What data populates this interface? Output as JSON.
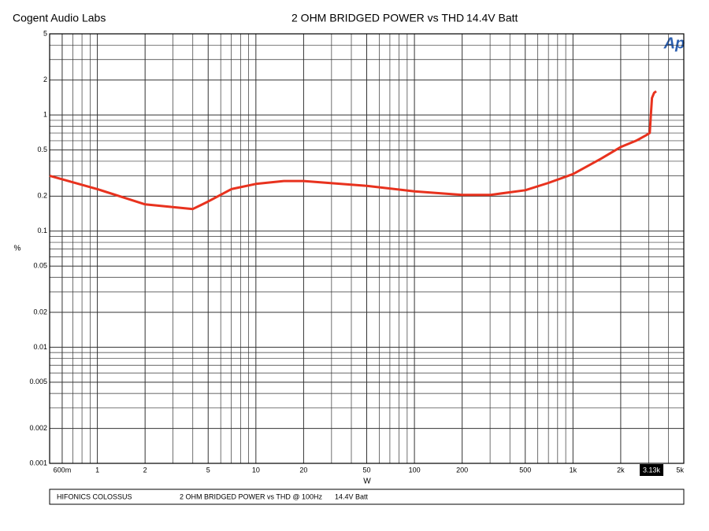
{
  "chart_data": {
    "type": "line",
    "header_left": "Cogent Audio Labs",
    "title": "2 OHM BRIDGED POWER vs THD",
    "subtitle": "14.4V Batt",
    "logo": "Ap",
    "xlabel": "W",
    "ylabel": "%",
    "xscale": "log",
    "yscale": "log",
    "grid": true,
    "minor_grid": true,
    "xlim": [
      0.5,
      5000
    ],
    "ylim": [
      0.001,
      5
    ],
    "xticks": [
      {
        "value": 0.6,
        "label": "600m"
      },
      1,
      2,
      5,
      10,
      20,
      50,
      100,
      200,
      500,
      {
        "value": 1000,
        "label": "1k"
      },
      {
        "value": 2000,
        "label": "2k"
      },
      {
        "value": 5000,
        "label": "5k"
      }
    ],
    "yticks": [
      5,
      2,
      1,
      0.5,
      0.2,
      0.1,
      0.05,
      0.02,
      0.01,
      0.005,
      0.002,
      0.001
    ],
    "cursor": {
      "value": 3130,
      "label": "3.13k"
    },
    "x": [
      0.5,
      1,
      2,
      4,
      5,
      7,
      10,
      15,
      20,
      50,
      100,
      200,
      300,
      500,
      700,
      1000,
      1500,
      2000,
      2500,
      2900,
      3050,
      3100,
      3150,
      3250,
      3350
    ],
    "series": [
      {
        "name": "THD",
        "color": "#e8321e",
        "values": [
          0.3,
          0.23,
          0.17,
          0.155,
          0.18,
          0.23,
          0.255,
          0.27,
          0.27,
          0.245,
          0.22,
          0.205,
          0.205,
          0.225,
          0.26,
          0.31,
          0.42,
          0.53,
          0.6,
          0.67,
          0.7,
          1.0,
          1.4,
          1.55,
          1.6
        ]
      }
    ],
    "footer": [
      "HIFONICS  COLOSSUS",
      "2 OHM BRIDGED POWER vs THD @ 100Hz",
      "14.4V Batt"
    ]
  }
}
